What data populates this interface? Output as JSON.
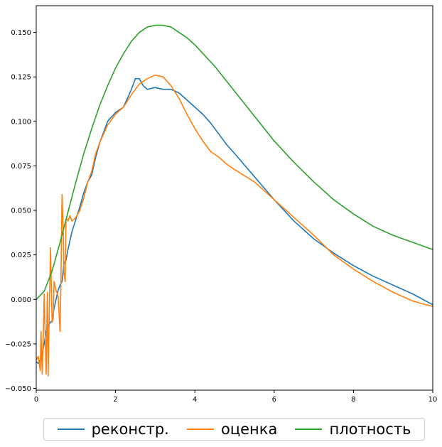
{
  "chart_data": {
    "type": "line",
    "title": "",
    "xlabel": "",
    "ylabel": "",
    "xlim": [
      0,
      10
    ],
    "ylim": [
      -0.051,
      0.165
    ],
    "xticks": [
      0,
      2,
      4,
      6,
      8,
      10
    ],
    "xtick_labels": [
      "0",
      "2",
      "4",
      "6",
      "8",
      "10"
    ],
    "yticks": [
      -0.05,
      -0.025,
      0.0,
      0.025,
      0.05,
      0.075,
      0.1,
      0.125,
      0.15
    ],
    "ytick_labels": [
      "−0.050",
      "−0.025",
      "0.000",
      "0.025",
      "0.050",
      "0.075",
      "0.100",
      "0.125",
      "0.150"
    ],
    "grid": false,
    "legend_position": "bottom-center",
    "series": [
      {
        "name": "реконстр.",
        "color": "#1f77b4",
        "x": [
          0,
          0.05,
          0.1,
          0.15,
          0.2,
          0.25,
          0.3,
          0.35,
          0.4,
          0.45,
          0.5,
          0.55,
          0.6,
          0.65,
          0.7,
          0.75,
          0.8,
          0.9,
          1.0,
          1.1,
          1.2,
          1.3,
          1.4,
          1.5,
          1.6,
          1.8,
          2.0,
          2.2,
          2.4,
          2.5,
          2.6,
          2.7,
          2.8,
          3.0,
          3.2,
          3.4,
          3.6,
          3.8,
          4.0,
          4.2,
          4.4,
          4.6,
          4.8,
          5.0,
          5.5,
          6.0,
          6.5,
          7.0,
          7.5,
          8.0,
          8.5,
          9.0,
          9.5,
          10.0
        ],
        "y": [
          -0.035,
          -0.036,
          -0.034,
          -0.03,
          -0.025,
          -0.018,
          -0.015,
          -0.013,
          -0.012,
          -0.005,
          0.0,
          0.005,
          0.008,
          0.01,
          0.02,
          0.022,
          0.028,
          0.038,
          0.045,
          0.052,
          0.06,
          0.066,
          0.07,
          0.08,
          0.088,
          0.1,
          0.105,
          0.108,
          0.118,
          0.124,
          0.124,
          0.12,
          0.118,
          0.119,
          0.118,
          0.118,
          0.116,
          0.112,
          0.108,
          0.104,
          0.099,
          0.093,
          0.087,
          0.082,
          0.069,
          0.056,
          0.044,
          0.034,
          0.026,
          0.019,
          0.013,
          0.008,
          0.003,
          -0.003
        ]
      },
      {
        "name": "оценка",
        "color": "#ff7f0e",
        "x": [
          0,
          0.05,
          0.1,
          0.12,
          0.15,
          0.18,
          0.2,
          0.25,
          0.28,
          0.3,
          0.33,
          0.36,
          0.4,
          0.43,
          0.45,
          0.5,
          0.55,
          0.6,
          0.62,
          0.65,
          0.68,
          0.7,
          0.73,
          0.75,
          0.78,
          0.8,
          0.85,
          0.9,
          0.95,
          1.0,
          1.1,
          1.2,
          1.3,
          1.4,
          1.5,
          1.6,
          1.8,
          2.0,
          2.2,
          2.4,
          2.6,
          2.8,
          3.0,
          3.2,
          3.4,
          3.6,
          3.8,
          4.0,
          4.2,
          4.4,
          4.6,
          4.8,
          5.0,
          5.5,
          6.0,
          6.5,
          7.0,
          7.5,
          8.0,
          8.5,
          9.0,
          9.5,
          10.0
        ],
        "y": [
          -0.034,
          -0.032,
          -0.04,
          -0.018,
          -0.042,
          -0.02,
          0.003,
          -0.042,
          0.004,
          -0.043,
          -0.005,
          0.029,
          -0.013,
          -0.01,
          0.01,
          0.005,
          0.002,
          -0.018,
          0.005,
          0.059,
          0.04,
          0.015,
          0.01,
          0.045,
          0.045,
          0.044,
          0.047,
          0.044,
          0.045,
          0.046,
          0.05,
          0.057,
          0.066,
          0.072,
          0.082,
          0.088,
          0.098,
          0.104,
          0.108,
          0.115,
          0.121,
          0.124,
          0.126,
          0.125,
          0.12,
          0.113,
          0.104,
          0.096,
          0.089,
          0.083,
          0.08,
          0.076,
          0.073,
          0.066,
          0.056,
          0.046,
          0.036,
          0.025,
          0.017,
          0.01,
          0.004,
          -0.001,
          -0.004
        ]
      },
      {
        "name": "плотность",
        "color": "#2ca02c",
        "x": [
          0,
          0.2,
          0.4,
          0.6,
          0.8,
          1.0,
          1.2,
          1.4,
          1.6,
          1.8,
          2.0,
          2.2,
          2.4,
          2.6,
          2.8,
          3.0,
          3.2,
          3.4,
          3.6,
          3.8,
          4.0,
          4.5,
          5.0,
          5.5,
          6.0,
          6.5,
          7.0,
          7.5,
          8.0,
          8.5,
          9.0,
          9.5,
          10.0
        ],
        "y": [
          0.0,
          0.0045,
          0.016,
          0.032,
          0.049,
          0.066,
          0.082,
          0.096,
          0.109,
          0.12,
          0.13,
          0.138,
          0.145,
          0.15,
          0.153,
          0.154,
          0.154,
          0.153,
          0.15,
          0.147,
          0.143,
          0.131,
          0.117,
          0.103,
          0.089,
          0.077,
          0.066,
          0.056,
          0.048,
          0.041,
          0.036,
          0.032,
          0.028
        ]
      }
    ]
  }
}
